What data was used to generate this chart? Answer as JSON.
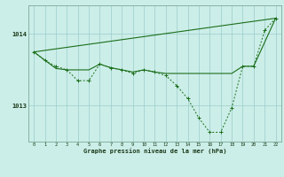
{
  "title": "Graphe pression niveau de la mer (hPa)",
  "bg_color": "#cceee8",
  "line_color": "#1a6e1a",
  "grid_color": "#99cccc",
  "x_values": [
    0,
    1,
    2,
    3,
    4,
    5,
    6,
    7,
    8,
    9,
    10,
    11,
    12,
    13,
    14,
    15,
    16,
    17,
    18,
    19,
    20,
    21,
    22
  ],
  "line_straight": [
    [
      0,
      22
    ],
    [
      1013.75,
      1014.22
    ]
  ],
  "line_smooth": [
    [
      0,
      2,
      3,
      4,
      5,
      6,
      7,
      8,
      9,
      10,
      11,
      12,
      13,
      14,
      15,
      16,
      17,
      18,
      19,
      20,
      22
    ],
    [
      1013.75,
      1013.52,
      1013.5,
      1013.5,
      1013.5,
      1013.58,
      1013.53,
      1013.5,
      1013.47,
      1013.5,
      1013.47,
      1013.45,
      1013.45,
      1013.45,
      1013.45,
      1013.45,
      1013.45,
      1013.45,
      1013.55,
      1013.55,
      1014.22
    ]
  ],
  "line_detail": [
    1013.75,
    1013.63,
    1013.55,
    1013.5,
    1013.35,
    1013.35,
    1013.58,
    1013.53,
    1013.5,
    1013.45,
    1013.5,
    1013.47,
    1013.42,
    1013.28,
    1013.1,
    1012.83,
    1012.63,
    1012.63,
    1012.97,
    1013.55,
    1013.55,
    1014.05,
    1014.22
  ],
  "ylim": [
    1012.5,
    1014.4
  ],
  "yticks": [
    1013.0,
    1014.0
  ],
  "xlim": [
    -0.5,
    22.5
  ],
  "figsize": [
    3.2,
    2.0
  ],
  "dpi": 100
}
